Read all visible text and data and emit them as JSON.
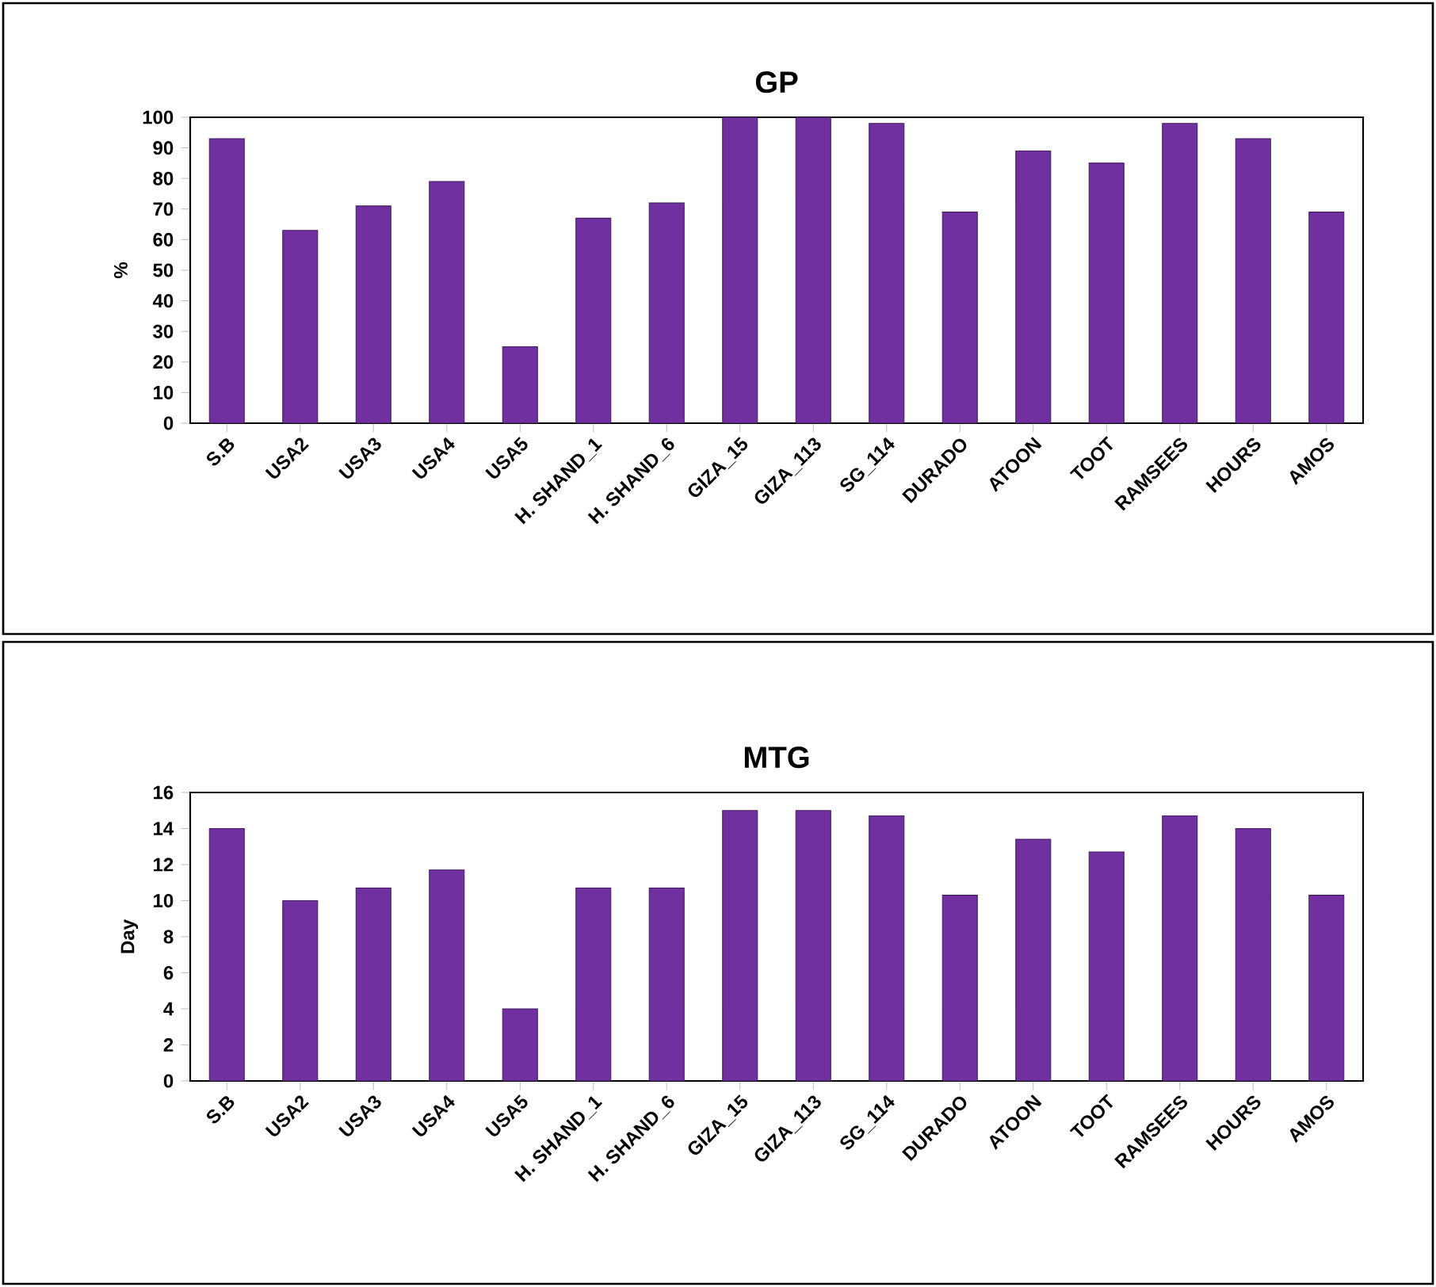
{
  "chart_data": [
    {
      "type": "bar",
      "title": "GP",
      "ylabel": "%",
      "categories": [
        "S.B",
        "USA2",
        "USA3",
        "USA4",
        "USA5",
        "H. SHAND_1",
        "H. SHAND_6",
        "GIZA_15",
        "GIZA_113",
        "SG_114",
        "DURADO",
        "ATOON",
        "TOOT",
        "RAMSEES",
        "HOURS",
        "AMOS"
      ],
      "values": [
        93,
        63,
        71,
        79,
        25,
        67,
        72,
        100,
        100,
        98,
        69,
        89,
        85,
        98,
        93,
        69
      ],
      "color": "#7030a0",
      "ylim": [
        0,
        100
      ],
      "yticks": [
        0,
        10,
        20,
        30,
        40,
        50,
        60,
        70,
        80,
        90,
        100
      ]
    },
    {
      "type": "bar",
      "title": "MTG",
      "ylabel": "Day",
      "categories": [
        "S.B",
        "USA2",
        "USA3",
        "USA4",
        "USA5",
        "H. SHAND_1",
        "H. SHAND_6",
        "GIZA_15",
        "GIZA_113",
        "SG_114",
        "DURADO",
        "ATOON",
        "TOOT",
        "RAMSEES",
        "HOURS",
        "AMOS"
      ],
      "values": [
        14,
        10,
        10.7,
        11.7,
        4,
        10.7,
        10.7,
        15,
        15,
        14.7,
        10.3,
        13.4,
        12.7,
        14.7,
        14,
        10.3
      ],
      "color": "#7030a0",
      "ylim": [
        0,
        16
      ],
      "yticks": [
        0,
        2,
        4,
        6,
        8,
        10,
        12,
        14,
        16
      ]
    }
  ]
}
